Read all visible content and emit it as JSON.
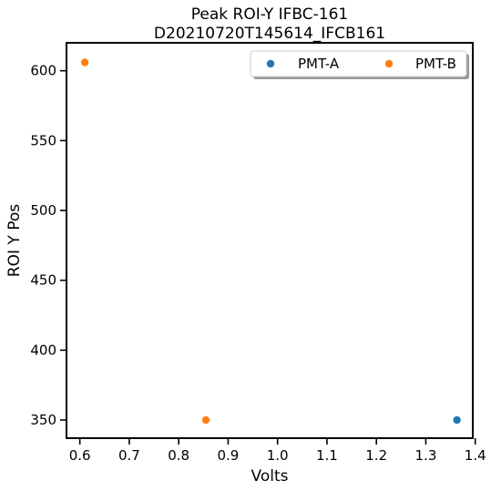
{
  "chart_data": {
    "type": "scatter",
    "title": [
      "Peak ROI-Y IFBC-161",
      "D20210720T145614_IFCB161"
    ],
    "xlabel": "Volts",
    "ylabel": "ROI Y Pos",
    "xlim": [
      0.573,
      1.395
    ],
    "ylim": [
      337,
      620
    ],
    "xticks": [
      0.6,
      0.7,
      0.8,
      0.9,
      1.0,
      1.1,
      1.2,
      1.3,
      1.4
    ],
    "xtick_labels": [
      "0.6",
      "0.7",
      "0.8",
      "0.9",
      "1.0",
      "1.1",
      "1.2",
      "1.3",
      "1.4"
    ],
    "yticks": [
      350,
      400,
      450,
      500,
      550,
      600
    ],
    "ytick_labels": [
      "350",
      "400",
      "450",
      "500",
      "550",
      "600"
    ],
    "grid": false,
    "legend_position": "top-right",
    "series": [
      {
        "name": "PMT-A",
        "color": "#1f77b4",
        "points": [
          [
            1.363,
            350
          ]
        ]
      },
      {
        "name": "PMT-B",
        "color": "#ff7f0e",
        "points": [
          [
            0.61,
            606
          ],
          [
            0.855,
            350
          ]
        ]
      }
    ]
  }
}
